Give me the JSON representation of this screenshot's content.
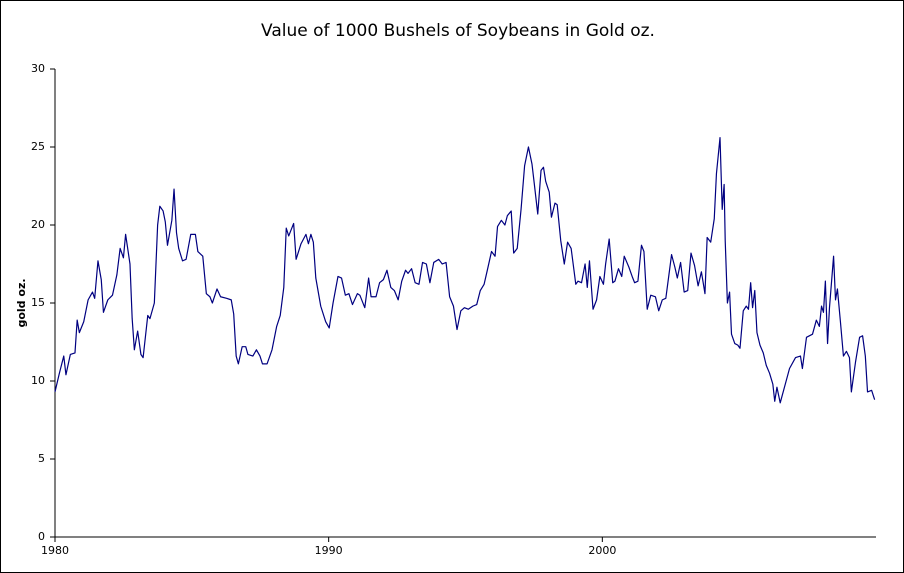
{
  "chart_data": {
    "type": "line",
    "title": "Value of 1000 Bushels of Soybeans in Gold oz.",
    "ylabel": "gold oz.",
    "xlim": [
      1980,
      2010
    ],
    "xticks": [
      1980,
      1990,
      2000
    ],
    "ylim": [
      0,
      30
    ],
    "yticks": [
      0,
      5,
      10,
      15,
      20,
      25,
      30
    ],
    "color": "#000080",
    "x": [
      1980.0,
      1980.16,
      1980.32,
      1980.4,
      1980.56,
      1980.73,
      1980.81,
      1980.89,
      1981.05,
      1981.21,
      1981.37,
      1981.45,
      1981.57,
      1981.69,
      1981.77,
      1981.93,
      1982.1,
      1982.26,
      1982.38,
      1982.5,
      1982.58,
      1982.74,
      1982.82,
      1982.9,
      1983.02,
      1983.14,
      1983.22,
      1983.39,
      1983.47,
      1983.63,
      1983.75,
      1983.83,
      1983.95,
      1984.03,
      1984.11,
      1984.27,
      1984.35,
      1984.44,
      1984.52,
      1984.66,
      1984.79,
      1984.96,
      1985.13,
      1985.22,
      1985.4,
      1985.53,
      1985.66,
      1985.75,
      1985.92,
      1986.05,
      1986.27,
      1986.44,
      1986.53,
      1986.62,
      1986.7,
      1986.84,
      1986.97,
      1987.05,
      1987.23,
      1987.36,
      1987.49,
      1987.58,
      1987.75,
      1987.93,
      1988.1,
      1988.23,
      1988.36,
      1988.45,
      1988.54,
      1988.72,
      1988.81,
      1988.99,
      1989.17,
      1989.26,
      1989.35,
      1989.44,
      1989.53,
      1989.71,
      1989.89,
      1990.02,
      1990.16,
      1990.34,
      1990.47,
      1990.61,
      1990.74,
      1990.87,
      1991.05,
      1991.14,
      1991.32,
      1991.46,
      1991.55,
      1991.73,
      1991.86,
      1992.0,
      1992.13,
      1992.27,
      1992.4,
      1992.54,
      1992.67,
      1992.81,
      1992.9,
      1993.03,
      1993.16,
      1993.3,
      1993.43,
      1993.57,
      1993.7,
      1993.84,
      1994.02,
      1994.15,
      1994.29,
      1994.42,
      1994.56,
      1994.69,
      1994.83,
      1994.96,
      1995.1,
      1995.27,
      1995.41,
      1995.54,
      1995.68,
      1995.81,
      1995.95,
      1996.08,
      1996.17,
      1996.31,
      1996.44,
      1996.53,
      1996.67,
      1996.76,
      1996.89,
      1997.03,
      1997.16,
      1997.3,
      1997.43,
      1997.51,
      1997.64,
      1997.76,
      1997.85,
      1997.93,
      1998.06,
      1998.14,
      1998.27,
      1998.35,
      1998.48,
      1998.61,
      1998.73,
      1998.86,
      1999.03,
      1999.11,
      1999.24,
      1999.37,
      1999.45,
      1999.53,
      1999.66,
      1999.79,
      1999.91,
      2000.04,
      2000.12,
      2000.25,
      2000.38,
      2000.46,
      2000.59,
      2000.71,
      2000.8,
      2000.97,
      2001.09,
      2001.18,
      2001.3,
      2001.43,
      2001.52,
      2001.64,
      2001.77,
      2001.94,
      2002.06,
      2002.19,
      2002.32,
      2002.44,
      2002.53,
      2002.65,
      2002.74,
      2002.86,
      2002.99,
      2003.12,
      2003.24,
      2003.37,
      2003.5,
      2003.62,
      2003.75,
      2003.83,
      2003.96,
      2004.09,
      2004.17,
      2004.3,
      2004.38,
      2004.45,
      2004.49,
      2004.57,
      2004.65,
      2004.72,
      2004.84,
      2004.95,
      2005.03,
      2005.15,
      2005.26,
      2005.34,
      2005.42,
      2005.49,
      2005.57,
      2005.65,
      2005.76,
      2005.88,
      2005.99,
      2006.11,
      2006.23,
      2006.3,
      2006.38,
      2006.5,
      2006.84,
      2007.06,
      2007.24,
      2007.31,
      2007.46,
      2007.68,
      2007.82,
      2007.93,
      2008.01,
      2008.08,
      2008.15,
      2008.23,
      2008.3,
      2008.45,
      2008.52,
      2008.59,
      2008.7,
      2008.81,
      2008.92,
      2009.03,
      2009.1,
      2009.25,
      2009.4,
      2009.51,
      2009.61,
      2009.69,
      2009.84,
      2009.95
    ],
    "values": [
      9.3,
      10.5,
      11.6,
      10.4,
      11.7,
      11.8,
      13.9,
      13.1,
      13.8,
      15.2,
      15.7,
      15.3,
      17.7,
      16.5,
      14.4,
      15.2,
      15.5,
      16.8,
      18.5,
      17.9,
      19.4,
      17.5,
      14.0,
      12.0,
      13.2,
      11.7,
      11.5,
      14.2,
      14.0,
      15.0,
      20.0,
      21.2,
      20.9,
      20.2,
      18.7,
      20.3,
      22.3,
      19.5,
      18.5,
      17.7,
      17.8,
      19.4,
      19.4,
      18.3,
      18.0,
      15.6,
      15.4,
      15.0,
      15.9,
      15.4,
      15.3,
      15.2,
      14.3,
      11.6,
      11.1,
      12.2,
      12.2,
      11.7,
      11.6,
      12.0,
      11.6,
      11.1,
      11.1,
      12.0,
      13.5,
      14.2,
      16.0,
      19.8,
      19.3,
      20.1,
      17.8,
      18.8,
      19.4,
      18.8,
      19.4,
      18.9,
      16.6,
      14.8,
      13.8,
      13.4,
      15.0,
      16.7,
      16.6,
      15.5,
      15.6,
      14.9,
      15.6,
      15.5,
      14.7,
      16.6,
      15.4,
      15.4,
      16.3,
      16.5,
      17.1,
      16.0,
      15.8,
      15.2,
      16.4,
      17.1,
      16.9,
      17.2,
      16.3,
      16.2,
      17.6,
      17.5,
      16.3,
      17.6,
      17.8,
      17.5,
      17.6,
      15.4,
      14.8,
      13.3,
      14.5,
      14.7,
      14.6,
      14.8,
      14.9,
      15.8,
      16.2,
      17.2,
      18.3,
      18.0,
      19.9,
      20.3,
      20.0,
      20.6,
      20.9,
      18.2,
      18.5,
      21.0,
      23.8,
      25.0,
      23.9,
      22.7,
      20.7,
      23.5,
      23.7,
      22.8,
      22.1,
      20.5,
      21.4,
      21.3,
      19.0,
      17.5,
      18.9,
      18.5,
      16.2,
      16.4,
      16.3,
      17.5,
      16.0,
      17.7,
      14.6,
      15.2,
      16.7,
      16.2,
      17.5,
      19.1,
      16.3,
      16.4,
      17.2,
      16.7,
      18.0,
      17.3,
      16.7,
      16.3,
      16.4,
      18.7,
      18.3,
      14.6,
      15.5,
      15.4,
      14.5,
      15.2,
      15.3,
      16.9,
      18.1,
      17.3,
      16.6,
      17.6,
      15.7,
      15.8,
      18.2,
      17.4,
      16.1,
      17.0,
      15.6,
      19.2,
      18.9,
      20.4,
      23.3,
      25.6,
      21.0,
      22.6,
      19.0,
      15.0,
      15.7,
      13.0,
      12.4,
      12.3,
      12.1,
      14.5,
      14.8,
      14.6,
      16.3,
      14.7,
      15.8,
      13.1,
      12.3,
      11.8,
      11.0,
      10.5,
      9.8,
      8.7,
      9.6,
      8.6,
      10.8,
      11.5,
      11.6,
      10.8,
      12.8,
      13.0,
      13.9,
      13.5,
      14.8,
      14.4,
      16.4,
      12.4,
      14.7,
      18.0,
      15.2,
      15.9,
      13.8,
      11.6,
      11.9,
      11.5,
      9.3,
      11.2,
      12.8,
      12.9,
      11.6,
      9.3,
      9.4,
      8.8
    ]
  }
}
